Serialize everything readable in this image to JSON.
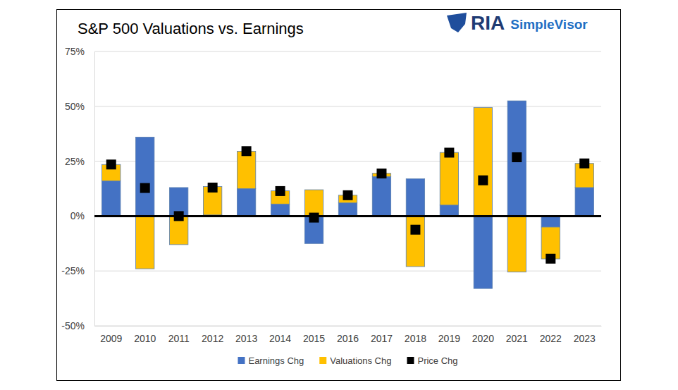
{
  "chart_data": {
    "type": "bar",
    "title": "S&P 500 Valuations vs. Earnings",
    "annotations": [
      "RIA",
      "SimpleVisor"
    ],
    "categories": [
      "2009",
      "2010",
      "2011",
      "2012",
      "2013",
      "2014",
      "2015",
      "2016",
      "2017",
      "2018",
      "2019",
      "2020",
      "2021",
      "2022",
      "2023"
    ],
    "series": [
      {
        "name": "Earnings Chg",
        "type": "bar",
        "color": "#4472c4",
        "values": [
          16,
          36,
          13,
          0.5,
          12.5,
          5.5,
          -12.5,
          6,
          18,
          17,
          5,
          -33,
          52.5,
          -5,
          13
        ]
      },
      {
        "name": "Valuations Chg",
        "type": "bar",
        "color": "#ffc000",
        "values": [
          7.5,
          -24,
          -13,
          13,
          17,
          6,
          12,
          3.5,
          1.5,
          -23,
          24,
          49.5,
          -25.5,
          -14.5,
          11
        ]
      },
      {
        "name": "Price Chg",
        "type": "scatter",
        "color": "#000000",
        "marker": "square",
        "values": [
          23.5,
          12.8,
          0,
          13,
          29.6,
          11.4,
          -0.7,
          9.5,
          19.4,
          -6.2,
          28.9,
          16.3,
          26.8,
          -19.4,
          24
        ]
      }
    ],
    "stacked": true,
    "ylim": [
      -50,
      75
    ],
    "yticks": [
      {
        "value": -50,
        "label": "-50%"
      },
      {
        "value": -25,
        "label": "-25%"
      },
      {
        "value": 0,
        "label": "0%"
      },
      {
        "value": 25,
        "label": "25%"
      },
      {
        "value": 50,
        "label": "50%"
      },
      {
        "value": 75,
        "label": "75%"
      }
    ],
    "grid": true,
    "legend": "bottom"
  }
}
